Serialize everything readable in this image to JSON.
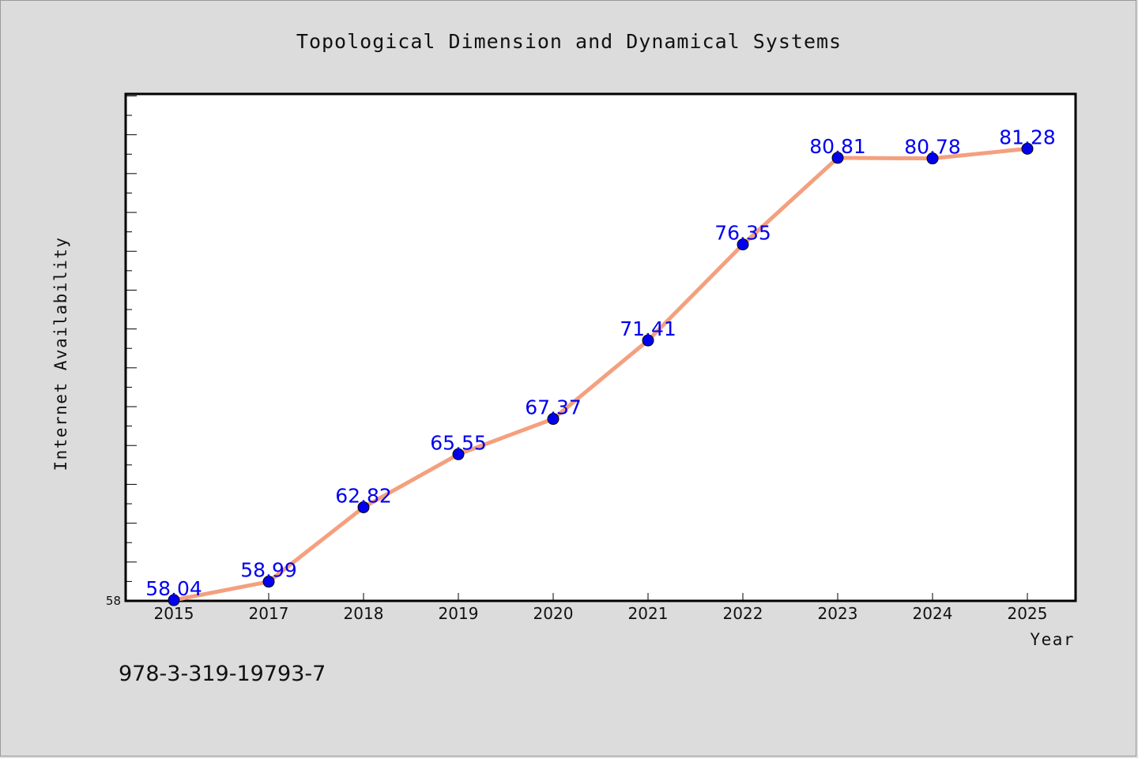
{
  "isbn": "978-3-319-19793-7",
  "chart_data": {
    "type": "line",
    "title": "Topological Dimension and Dynamical Systems",
    "xlabel": "Year",
    "ylabel": "Internet Availability",
    "categories": [
      "2015",
      "2017",
      "2018",
      "2019",
      "2020",
      "2021",
      "2022",
      "2023",
      "2024",
      "2025"
    ],
    "series": [
      {
        "values": [
          58.04,
          58.99,
          62.82,
          65.55,
          67.37,
          71.41,
          76.35,
          80.81,
          80.78,
          81.28
        ],
        "labels": [
          "58.04",
          "58.99",
          "62.82",
          "65.55",
          "67.37",
          "71.41",
          "76.35",
          "80.81",
          "80.78",
          "81.28"
        ]
      }
    ],
    "ylim": [
      58,
      84.1
    ],
    "y_tick_labels": [
      "58"
    ],
    "grid": false,
    "legend": "none",
    "line_color": "#f4a07e",
    "marker_color": "#0000ee",
    "label_color": "#0000ee"
  }
}
